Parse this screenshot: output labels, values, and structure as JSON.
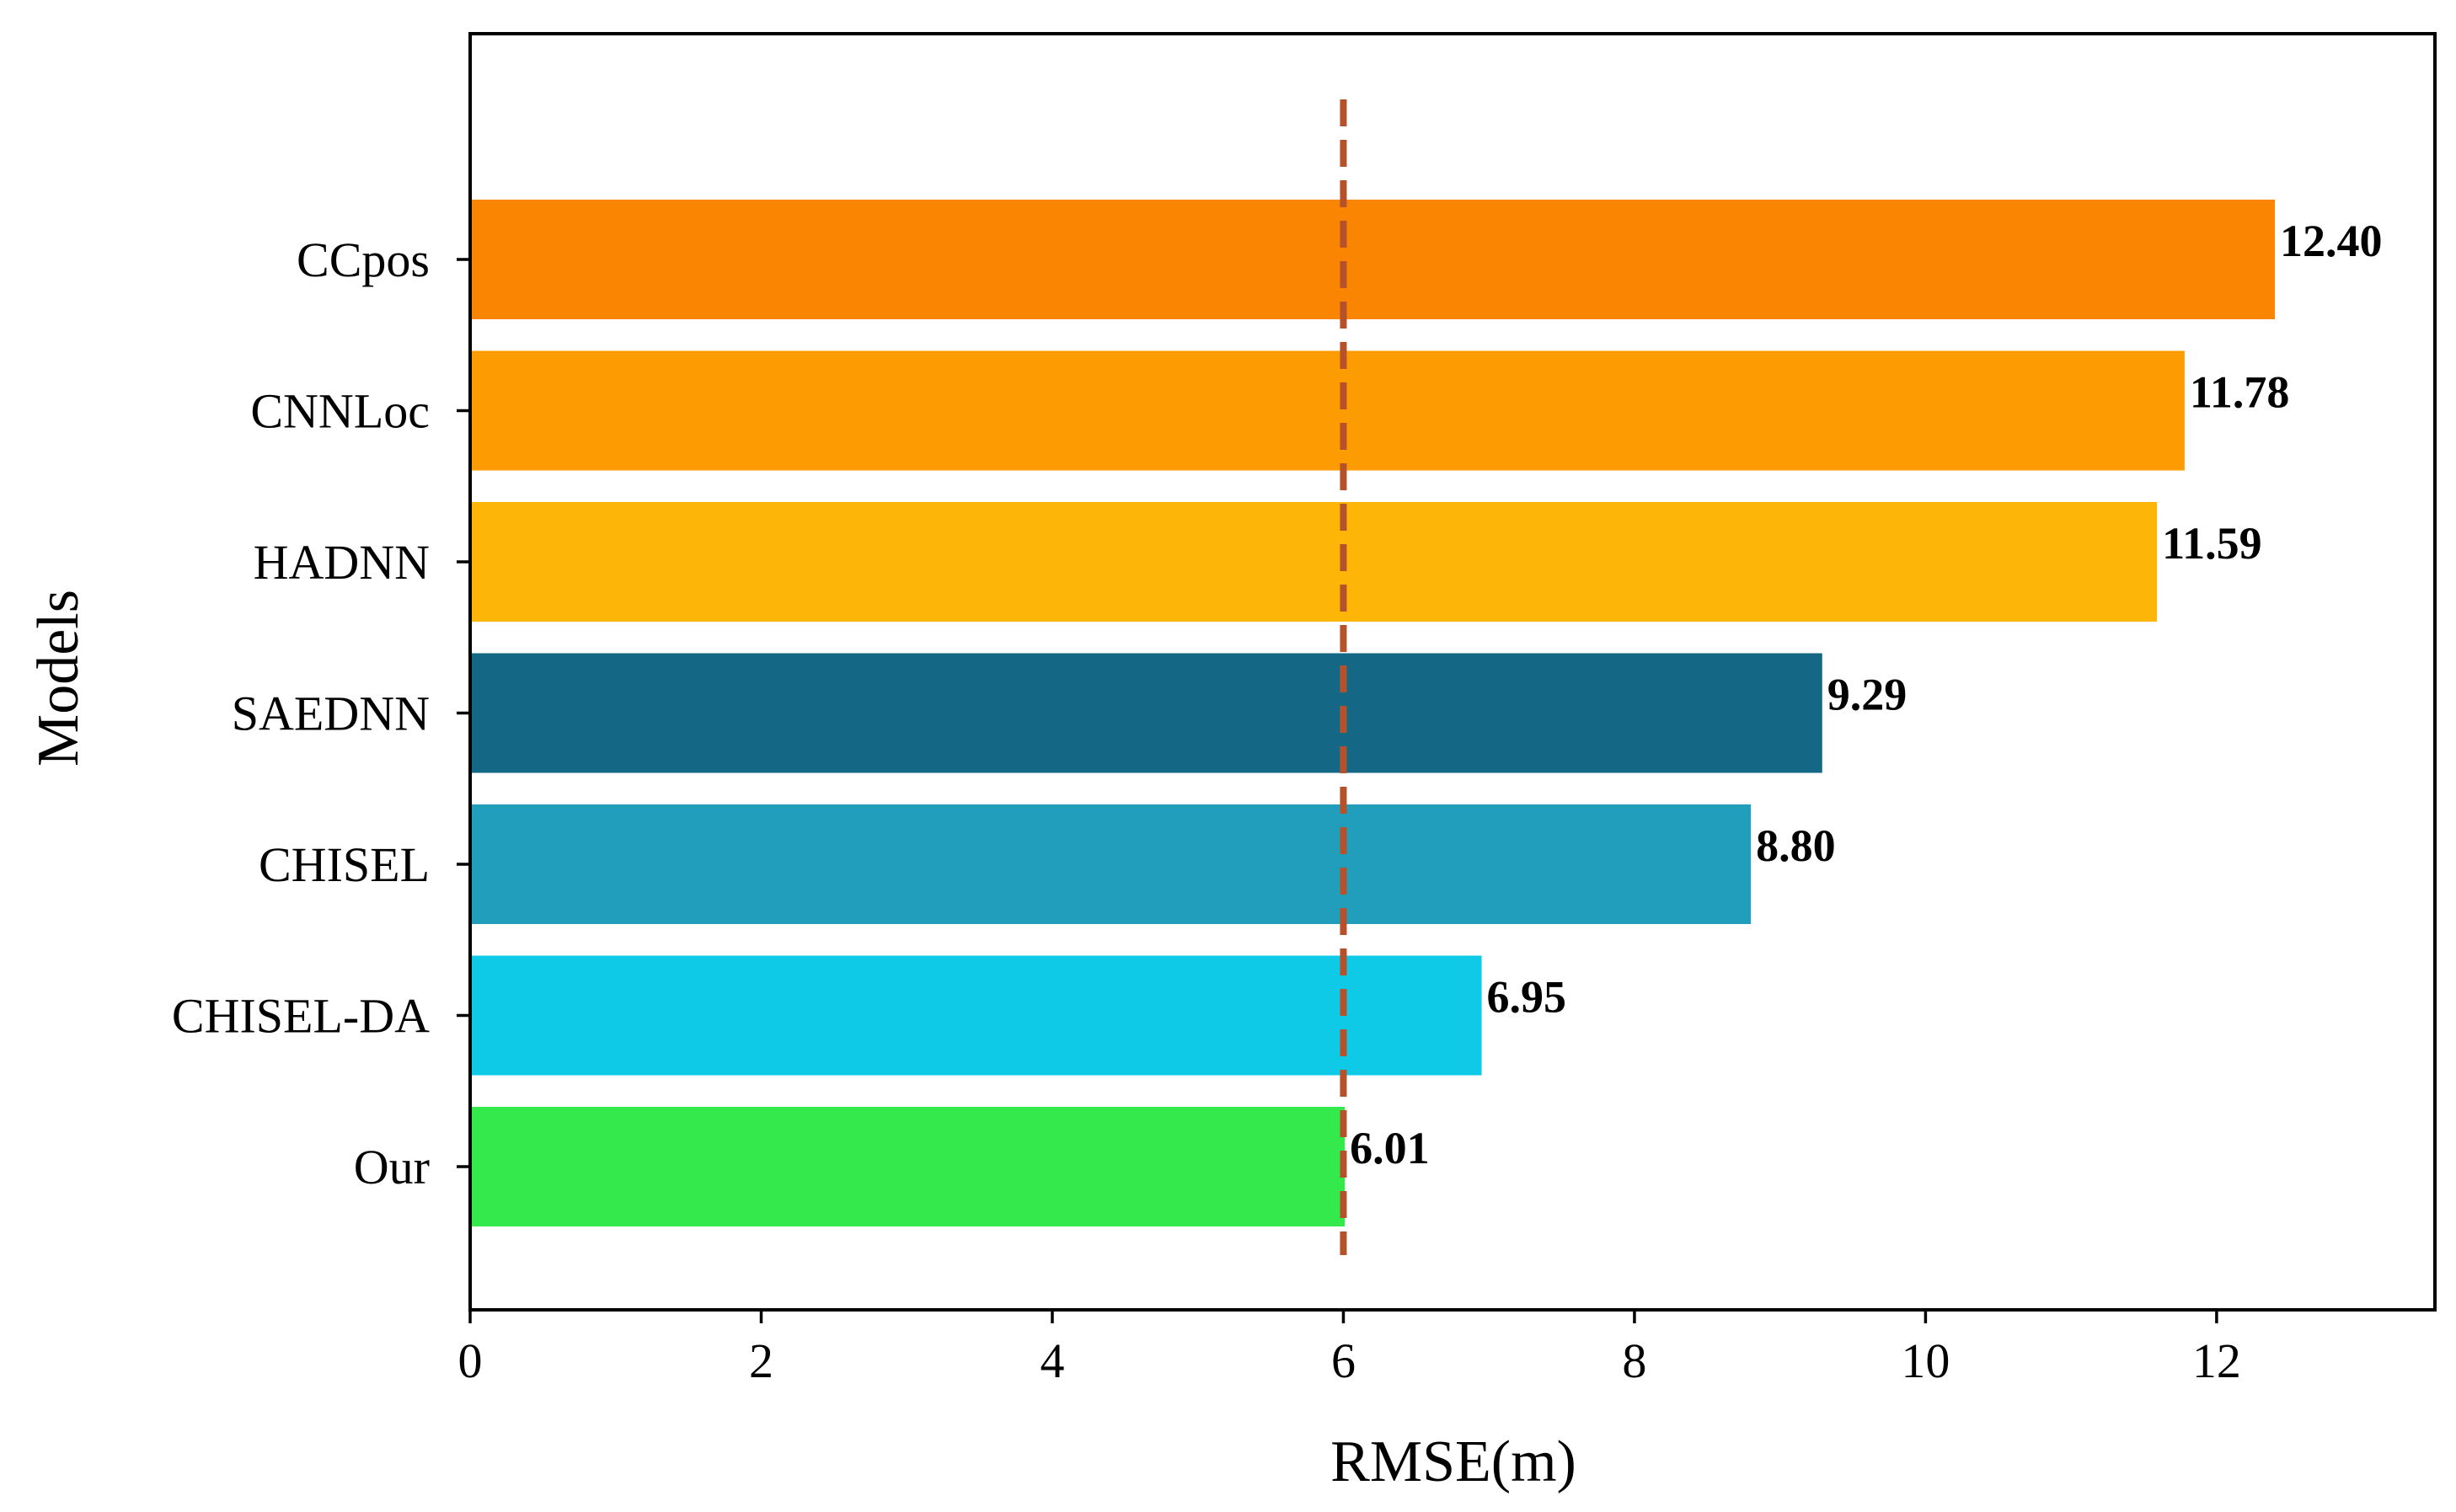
{
  "chart_data": {
    "type": "bar",
    "orientation": "horizontal",
    "title": "",
    "xlabel": "RMSE(m)",
    "ylabel": "Models",
    "xlim": [
      0,
      13.5
    ],
    "xticks": [
      0,
      2,
      4,
      6,
      8,
      10,
      12
    ],
    "grid": false,
    "categories": [
      "CCpos",
      "CNNLoc",
      "HADNN",
      "SAEDNN",
      "CHISEL",
      "CHISEL-DA",
      "Our"
    ],
    "values": [
      12.4,
      11.78,
      11.59,
      9.29,
      8.8,
      6.95,
      6.01
    ],
    "value_labels": [
      "12.40",
      "11.78",
      "11.59",
      "9.29",
      "8.80",
      "6.95",
      "6.01"
    ],
    "bar_colors": [
      "#f98502",
      "#fd9c02",
      "#fdb608",
      "#156885",
      "#219ebc",
      "#0ecae6",
      "#34e94b"
    ],
    "reference_line": {
      "x": 6.0,
      "color": "#b5522b",
      "style": "dashed"
    }
  }
}
